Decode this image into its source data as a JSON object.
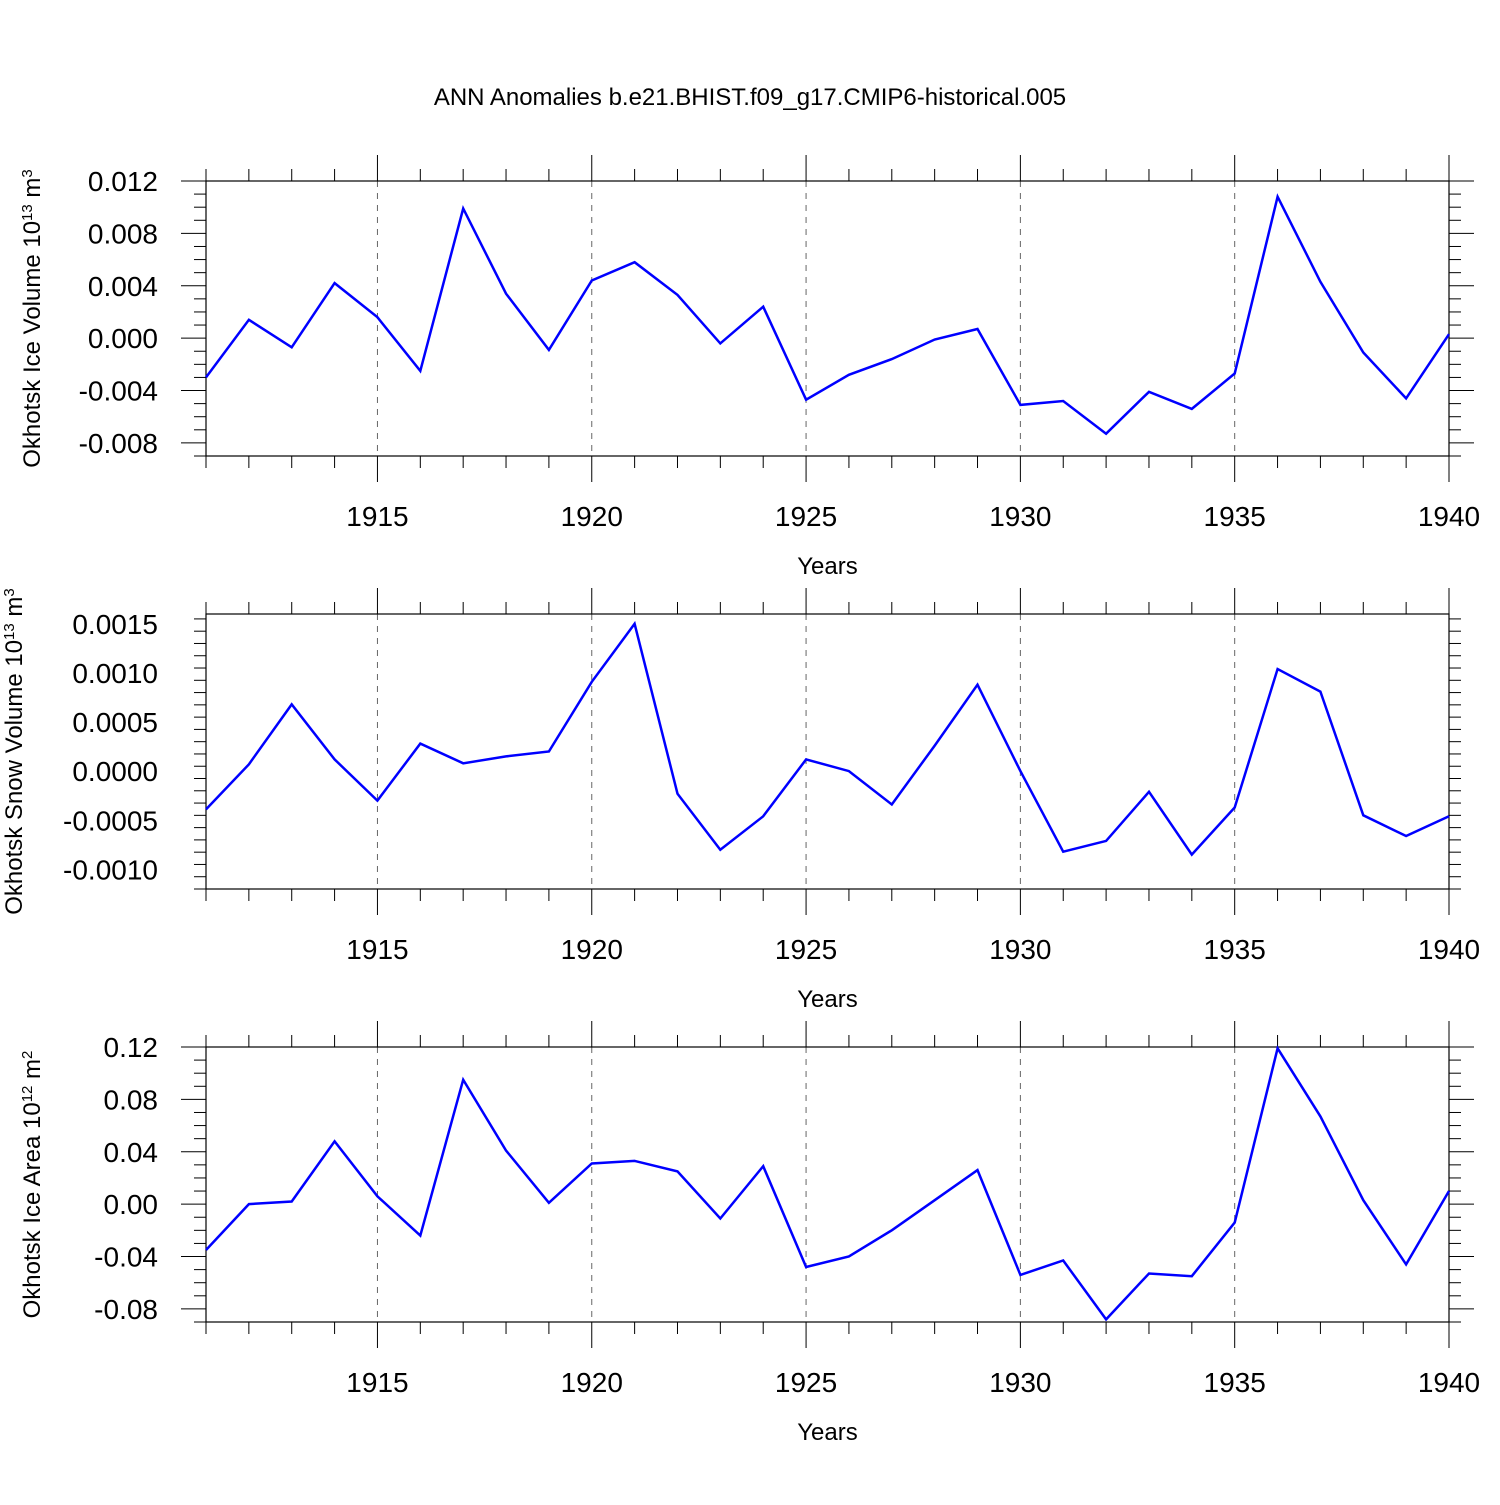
{
  "title": "ANN Anomalies b.e21.BHIST.f09_g17.CMIP6-historical.005",
  "line_color": "#0000ff",
  "chart_data": [
    {
      "type": "line",
      "ylabel": "Okhotsk Ice Volume 10",
      "ylabel_exp": "13",
      "ylabel_unit": " m",
      "ylabel_unit_exp": "3",
      "xlabel": "Years",
      "xlim": [
        1911,
        1940
      ],
      "ylim": [
        -0.009,
        0.012
      ],
      "xticks": [
        1915,
        1920,
        1925,
        1930,
        1935,
        1940
      ],
      "xtick_labels": [
        "1915",
        "1920",
        "1925",
        "1930",
        "1935",
        "1940"
      ],
      "yticks": [
        -0.008,
        -0.004,
        0.0,
        0.004,
        0.008,
        0.012
      ],
      "ytick_labels": [
        "-0.008",
        "-0.004",
        "0.000",
        "0.004",
        "0.008",
        "0.012"
      ],
      "grid": "vertical dashed at major x ticks",
      "x": [
        1911,
        1912,
        1913,
        1914,
        1915,
        1916,
        1917,
        1918,
        1919,
        1920,
        1921,
        1922,
        1923,
        1924,
        1925,
        1926,
        1927,
        1928,
        1929,
        1930,
        1931,
        1932,
        1933,
        1934,
        1935,
        1936,
        1937,
        1938,
        1939,
        1940
      ],
      "values": [
        -0.003,
        0.0014,
        -0.0007,
        0.0042,
        0.0016,
        -0.0025,
        0.0099,
        0.0034,
        -0.0009,
        0.0044,
        0.0058,
        0.0033,
        -0.0004,
        0.0024,
        -0.0047,
        -0.0028,
        -0.0016,
        -0.0001,
        0.0007,
        -0.0051,
        -0.0048,
        -0.0073,
        -0.0041,
        -0.0054,
        -0.0027,
        0.0108,
        0.0043,
        -0.0011,
        -0.0046,
        0.0003
      ]
    },
    {
      "type": "line",
      "ylabel": "Okhotsk Snow Volume 10",
      "ylabel_exp": "13",
      "ylabel_unit": " m",
      "ylabel_unit_exp": "3",
      "xlabel": "Years",
      "xlim": [
        1911,
        1940
      ],
      "ylim": [
        -0.0012,
        0.0016
      ],
      "xticks": [
        1915,
        1920,
        1925,
        1930,
        1935,
        1940
      ],
      "xtick_labels": [
        "1915",
        "1920",
        "1925",
        "1930",
        "1935",
        "1940"
      ],
      "yticks": [
        -0.001,
        -0.0005,
        0.0,
        0.0005,
        0.001,
        0.0015
      ],
      "ytick_labels": [
        "-0.0010",
        "-0.0005",
        "0.0000",
        "0.0005",
        "0.0010",
        "0.0015"
      ],
      "grid": "vertical dashed at major x ticks",
      "x": [
        1911,
        1912,
        1913,
        1914,
        1915,
        1916,
        1917,
        1918,
        1919,
        1920,
        1921,
        1922,
        1923,
        1924,
        1925,
        1926,
        1927,
        1928,
        1929,
        1930,
        1931,
        1932,
        1933,
        1934,
        1935,
        1936,
        1937,
        1938,
        1939,
        1940
      ],
      "values": [
        -0.00039,
        7e-05,
        0.00068,
        0.00012,
        -0.0003,
        0.00028,
        8e-05,
        0.00015,
        0.0002,
        0.00091,
        0.0015,
        -0.00023,
        -0.0008,
        -0.00046,
        0.00012,
        0.0,
        -0.00034,
        0.00026,
        0.00088,
        0.0,
        -0.00082,
        -0.00071,
        -0.00021,
        -0.00085,
        -0.00037,
        0.00104,
        0.00081,
        -0.00045,
        -0.00066,
        -0.00046
      ]
    },
    {
      "type": "line",
      "ylabel": "Okhotsk Ice Area 10",
      "ylabel_exp": "12",
      "ylabel_unit": " m",
      "ylabel_unit_exp": "2",
      "xlabel": "Years",
      "xlim": [
        1911,
        1940
      ],
      "ylim": [
        -0.09,
        0.12
      ],
      "xticks": [
        1915,
        1920,
        1925,
        1930,
        1935,
        1940
      ],
      "xtick_labels": [
        "1915",
        "1920",
        "1925",
        "1930",
        "1935",
        "1940"
      ],
      "yticks": [
        -0.08,
        -0.04,
        0.0,
        0.04,
        0.08,
        0.12
      ],
      "ytick_labels": [
        "-0.08",
        "-0.04",
        "0.00",
        "0.04",
        "0.08",
        "0.12"
      ],
      "grid": "vertical dashed at major x ticks",
      "x": [
        1911,
        1912,
        1913,
        1914,
        1915,
        1916,
        1917,
        1918,
        1919,
        1920,
        1921,
        1922,
        1923,
        1924,
        1925,
        1926,
        1927,
        1928,
        1929,
        1930,
        1931,
        1932,
        1933,
        1934,
        1935,
        1936,
        1937,
        1938,
        1939,
        1940
      ],
      "values": [
        -0.035,
        0.0,
        0.002,
        0.048,
        0.006,
        -0.024,
        0.095,
        0.041,
        0.001,
        0.031,
        0.033,
        0.025,
        -0.011,
        0.029,
        -0.048,
        -0.04,
        -0.02,
        0.003,
        0.026,
        -0.054,
        -0.043,
        -0.088,
        -0.053,
        -0.055,
        -0.014,
        0.119,
        0.067,
        0.003,
        -0.046,
        0.01
      ]
    }
  ]
}
